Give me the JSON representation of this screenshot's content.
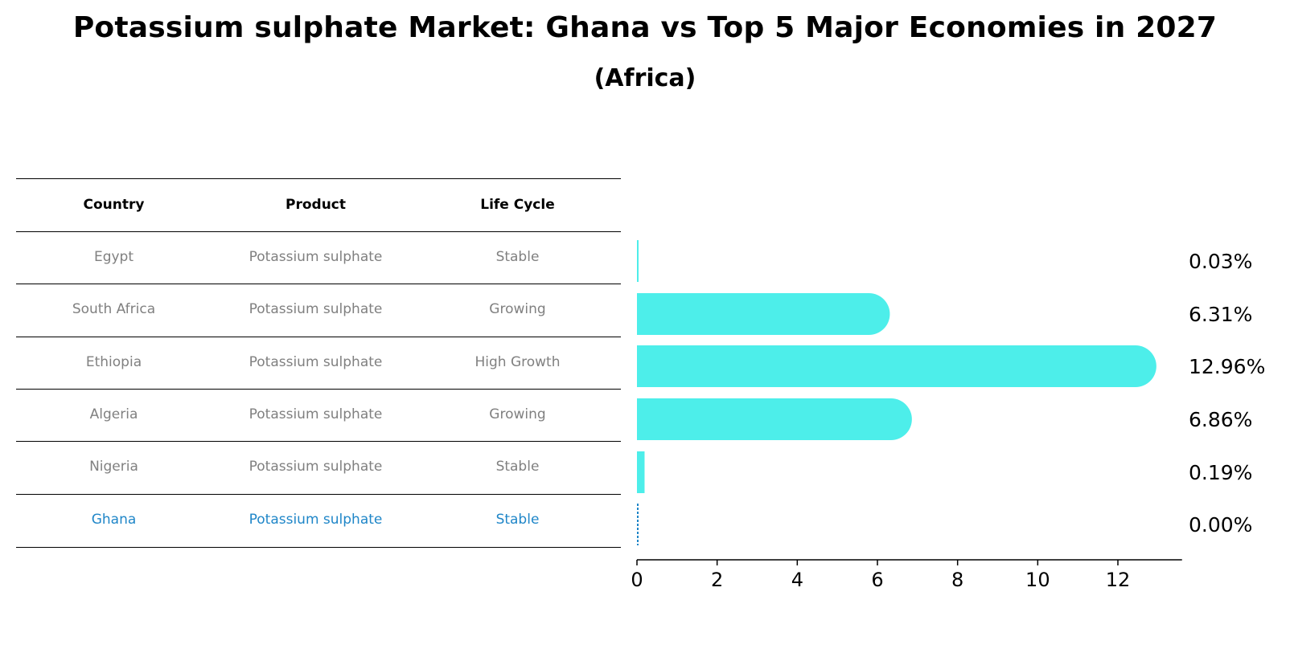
{
  "title": "Potassium sulphate Market: Ghana vs Top 5 Major Economies in 2027",
  "subtitle": "(Africa)",
  "table": {
    "headers": [
      "Country",
      "Product",
      "Life Cycle"
    ],
    "rows": [
      {
        "country": "Egypt",
        "product": "Potassium sulphate",
        "life_cycle": "Stable",
        "highlight": false
      },
      {
        "country": "South Africa",
        "product": "Potassium sulphate",
        "life_cycle": "Growing",
        "highlight": false
      },
      {
        "country": "Ethiopia",
        "product": "Potassium sulphate",
        "life_cycle": "High Growth",
        "highlight": false
      },
      {
        "country": "Algeria",
        "product": "Potassium sulphate",
        "life_cycle": "Growing",
        "highlight": false
      },
      {
        "country": "Nigeria",
        "product": "Potassium sulphate",
        "life_cycle": "Stable",
        "highlight": false
      },
      {
        "country": "Ghana",
        "product": "Potassium sulphate",
        "life_cycle": "Stable",
        "highlight": true
      }
    ]
  },
  "colors": {
    "bar": "#4deeea",
    "highlight": "#1f86c8",
    "muted_text": "#808080"
  },
  "chart_data": {
    "type": "bar",
    "orientation": "horizontal",
    "categories": [
      "Egypt",
      "South Africa",
      "Ethiopia",
      "Algeria",
      "Nigeria",
      "Ghana"
    ],
    "values": [
      0.03,
      6.31,
      12.96,
      6.86,
      0.19,
      0.0
    ],
    "value_labels": [
      "0.03%",
      "6.31%",
      "12.96%",
      "6.86%",
      "0.19%",
      "0.00%"
    ],
    "xlim": [
      0,
      13.6
    ],
    "xticks": [
      0,
      2,
      4,
      6,
      8,
      10,
      12
    ],
    "grid": false
  }
}
